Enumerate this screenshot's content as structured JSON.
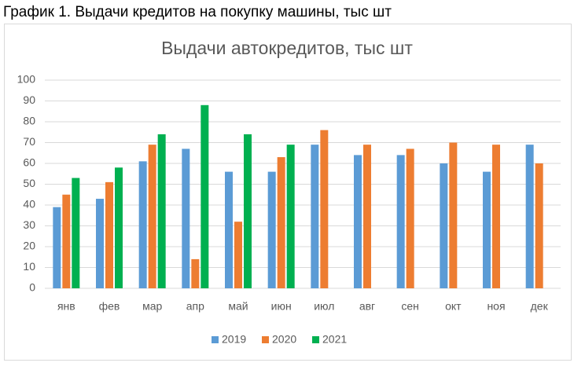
{
  "caption": "График 1. Выдачи кредитов на покупку машины, тыс шт",
  "chart_data": {
    "type": "bar",
    "title": "Выдачи автокредитов, тыс шт",
    "categories": [
      "янв",
      "фев",
      "мар",
      "апр",
      "май",
      "июн",
      "июл",
      "авг",
      "сен",
      "окт",
      "ноя",
      "дек"
    ],
    "series": [
      {
        "name": "2019",
        "color": "#5b9bd5",
        "values": [
          39,
          43,
          61,
          67,
          56,
          56,
          69,
          64,
          64,
          60,
          56,
          69
        ]
      },
      {
        "name": "2020",
        "color": "#ed7d31",
        "values": [
          45,
          51,
          69,
          14,
          32,
          63,
          76,
          69,
          67,
          70,
          69,
          60
        ]
      },
      {
        "name": "2021",
        "color": "#00b050",
        "values": [
          53,
          58,
          74,
          88,
          74,
          69,
          null,
          null,
          null,
          null,
          null,
          null
        ]
      }
    ],
    "ylim": [
      0,
      100
    ],
    "yticks": [
      0,
      10,
      20,
      30,
      40,
      50,
      60,
      70,
      80,
      90,
      100
    ],
    "grid": true,
    "legend": "bottom"
  }
}
